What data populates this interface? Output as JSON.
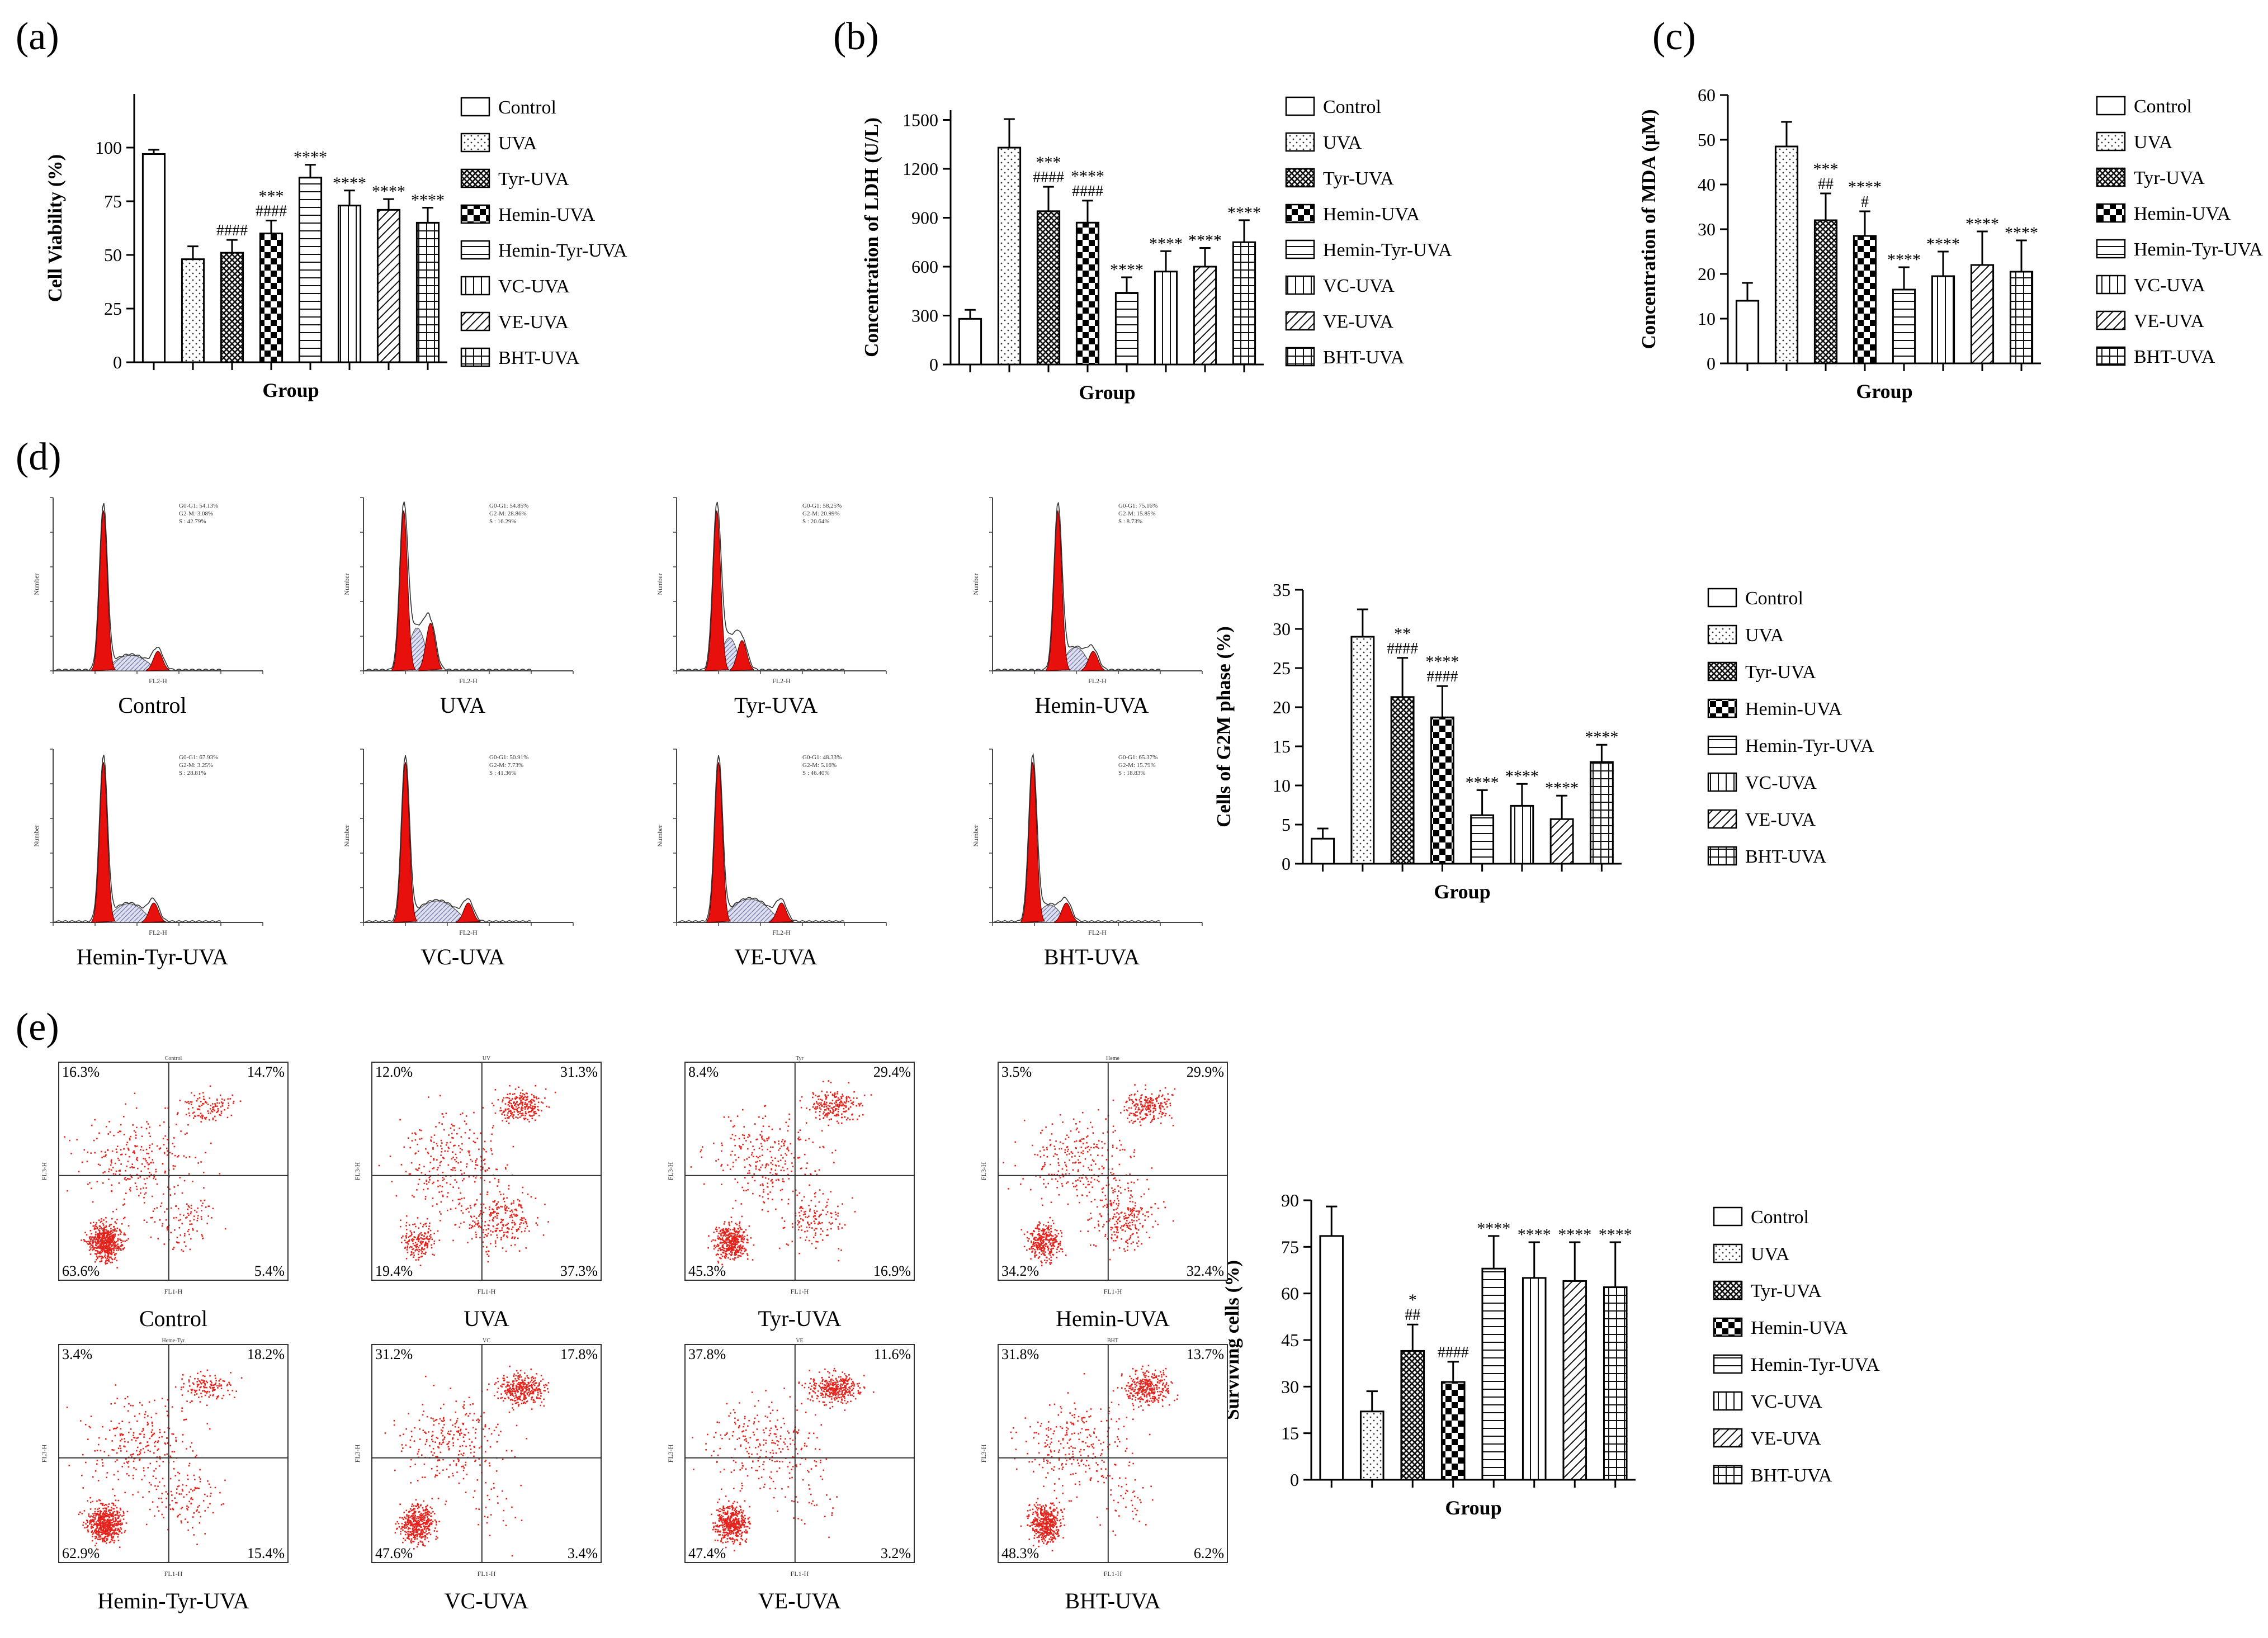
{
  "groups": [
    "Control",
    "UVA",
    "Tyr-UVA",
    "Hemin-UVA",
    "Hemin-Tyr-UVA",
    "VC-UVA",
    "VE-UVA",
    "BHT-UVA"
  ],
  "bar_charts": [
    {
      "id": "a",
      "panel_label": "(a)",
      "type": "bar",
      "ylabel": "Cell Viability (%)",
      "xlabel": "Group",
      "ylim": [
        0,
        125
      ],
      "yticks": [
        0,
        25,
        50,
        75,
        100
      ],
      "values": [
        97,
        48,
        51,
        60,
        86,
        73,
        71,
        65
      ],
      "errors": [
        2,
        6,
        6,
        6,
        6,
        7,
        5,
        7
      ],
      "sig_top": [
        "",
        "",
        "",
        "***",
        "****",
        "****",
        "****",
        "****"
      ],
      "sig_bottom": [
        "",
        "",
        "####",
        "####",
        "",
        "",
        "",
        ""
      ],
      "legend": [
        "Control",
        "UVA",
        "Tyr-UVA",
        "Hemin-UVA",
        "Hemin-Tyr-UVA",
        "VC-UVA",
        "VE-UVA",
        "BHT-UVA"
      ]
    },
    {
      "id": "b",
      "panel_label": "(b)",
      "type": "bar",
      "ylabel": "Concentration of LDH (U/L)",
      "xlabel": "Group",
      "ylim": [
        0,
        1560
      ],
      "yticks": [
        0,
        300,
        600,
        900,
        1200,
        1500
      ],
      "values": [
        280,
        1330,
        940,
        870,
        440,
        570,
        600,
        750
      ],
      "errors": [
        55,
        175,
        150,
        135,
        95,
        125,
        115,
        135
      ],
      "sig_top": [
        "",
        "",
        "***",
        "****",
        "****",
        "****",
        "****",
        "****"
      ],
      "sig_bottom": [
        "",
        "",
        "####",
        "####",
        "",
        "",
        "",
        ""
      ],
      "legend": [
        "Control",
        "UVA",
        "Tyr-UVA",
        "Hemin-UVA",
        "Hemin-Tyr-UVA",
        "VC-UVA",
        "VE-UVA",
        "BHT-UVA"
      ]
    },
    {
      "id": "c",
      "panel_label": "(c)",
      "type": "bar",
      "ylabel": "Concentration of MDA (μM)",
      "xlabel": "Group",
      "ylim": [
        0,
        60
      ],
      "yticks": [
        0,
        10,
        20,
        30,
        40,
        50,
        60
      ],
      "values": [
        14,
        48.5,
        32,
        28.5,
        16.5,
        19.5,
        22,
        20.5
      ],
      "errors": [
        4,
        5.5,
        6,
        5.5,
        5,
        5.5,
        7.5,
        7
      ],
      "sig_top": [
        "",
        "",
        "***",
        "****",
        "****",
        "****",
        "****",
        "****"
      ],
      "sig_bottom": [
        "",
        "",
        "##",
        "#",
        "",
        "",
        "",
        ""
      ],
      "legend": [
        "Control",
        "UVA",
        "Tyr-UVA",
        "Hemin-UVA",
        "Hemin-Tyr-UVA",
        "VC-UVA",
        "VE-UVA",
        "BHT-UVA"
      ]
    },
    {
      "id": "d",
      "panel_label": "",
      "type": "bar",
      "ylabel": "Cells of G2M phase (%)",
      "xlabel": "Group",
      "ylim": [
        0,
        35
      ],
      "yticks": [
        0,
        5,
        10,
        15,
        20,
        25,
        30,
        35
      ],
      "values": [
        3.2,
        29,
        21.3,
        18.7,
        6.2,
        7.4,
        5.7,
        13
      ],
      "errors": [
        1.3,
        3.5,
        5,
        4,
        3.2,
        2.8,
        3,
        2.2
      ],
      "sig_top": [
        "",
        "",
        "**",
        "****",
        "****",
        "****",
        "****",
        "****"
      ],
      "sig_bottom": [
        "",
        "",
        "####",
        "####",
        "",
        "",
        "",
        ""
      ],
      "legend": [
        "Control",
        "UVA",
        "Tyr-UVA",
        "Hemin-UVA",
        "Hemin-Tyr-UVA",
        "VC-UVA",
        "VE-UVA",
        "BHT-UVA"
      ]
    },
    {
      "id": "e",
      "panel_label": "",
      "type": "bar",
      "ylabel": "Surviving cells (%)",
      "xlabel": "Group",
      "ylim": [
        0,
        90
      ],
      "yticks": [
        0,
        15,
        30,
        45,
        60,
        75,
        90
      ],
      "values": [
        78.5,
        22,
        41.5,
        31.5,
        68,
        65,
        64,
        62
      ],
      "errors": [
        9.5,
        6.5,
        8.5,
        6.5,
        10.5,
        11.5,
        12.5,
        14.5
      ],
      "sig_top": [
        "",
        "",
        "*",
        "",
        "****",
        "****",
        "****",
        "****"
      ],
      "sig_bottom": [
        "",
        "",
        "##",
        "####",
        "",
        "",
        "",
        ""
      ],
      "legend": [
        "Control",
        "UVA",
        "Tyr-UVA",
        "Hemin-UVA",
        "Hemin-Tyr-UVA",
        "VC-UVA",
        "VE-UVA",
        "BHT-UVA"
      ]
    }
  ],
  "panel_d": {
    "label": "(d)",
    "plots": [
      {
        "caption": "Control",
        "xlabel": "FL2-H",
        "ylabel": "Number",
        "stats": [
          "G0-G1: 54.13%",
          "G2-M: 3.08%",
          "S : 42.79%"
        ],
        "g1": 60,
        "g2": 125,
        "s_peak": 40
      },
      {
        "caption": "UVA",
        "xlabel": "FL2-H",
        "ylabel": "Number",
        "stats": [
          "G0-G1: 54.85%",
          "G2-M: 28.86%",
          "S : 16.29%"
        ],
        "g1": 48,
        "g2": 80,
        "s_peak": 110
      },
      {
        "caption": "Tyr-UVA",
        "xlabel": "FL2-H",
        "ylabel": "Number",
        "stats": [
          "G0-G1: 58.25%",
          "G2-M: 20.99%",
          "S : 20.64%"
        ],
        "g1": 48,
        "g2": 78,
        "s_peak": 85
      },
      {
        "caption": "Hemin-UVA",
        "xlabel": "FL2-H",
        "ylabel": "Number",
        "stats": [
          "G0-G1: 75.16%",
          "G2-M: 15.85%",
          "S : 8.73%"
        ],
        "g1": 78,
        "g2": 120,
        "s_peak": 60
      },
      {
        "caption": "Hemin-Tyr-UVA",
        "xlabel": "FL2-H",
        "ylabel": "Number",
        "stats": [
          "G0-G1: 67.93%",
          "G2-M: 3.25%",
          "S : 28.81%"
        ],
        "g1": 60,
        "g2": 120,
        "s_peak": 48
      },
      {
        "caption": "VC-UVA",
        "xlabel": "FL2-H",
        "ylabel": "Number",
        "stats": [
          "G0-G1: 50.91%",
          "G2-M: 7.73%",
          "S : 41.36%"
        ],
        "g1": 50,
        "g2": 125,
        "s_peak": 55
      },
      {
        "caption": "VE-UVA",
        "xlabel": "FL2-H",
        "ylabel": "Number",
        "stats": [
          "G0-G1: 48.33%",
          "G2-M: 5.16%",
          "S : 46.40%"
        ],
        "g1": 50,
        "g2": 125,
        "s_peak": 60
      },
      {
        "caption": "BHT-UVA",
        "xlabel": "FL2-H",
        "ylabel": "Number",
        "stats": [
          "G0-G1: 65.37%",
          "G2-M: 15.79%",
          "S : 18.83%"
        ],
        "g1": 48,
        "g2": 88,
        "s_peak": 45
      }
    ]
  },
  "panel_e": {
    "label": "(e)",
    "plots": [
      {
        "caption": "Control",
        "title": "Control",
        "xlabel": "FL1-H",
        "ylabel": "FL3-H",
        "q": [
          "16.3%",
          "14.7%",
          "63.6%",
          "5.4%"
        ],
        "live": 0.66,
        "apo": 0.15,
        "necro": 0.16
      },
      {
        "caption": "UVA",
        "title": "UV",
        "xlabel": "FL1-H",
        "ylabel": "FL3-H",
        "q": [
          "12.0%",
          "31.3%",
          "19.4%",
          "37.3%"
        ],
        "live": 0.2,
        "apo": 0.4,
        "necro": 0.34
      },
      {
        "caption": "Tyr-UVA",
        "title": "Tyr",
        "xlabel": "FL1-H",
        "ylabel": "FL3-H",
        "q": [
          "8.4%",
          "29.4%",
          "45.3%",
          "16.9%"
        ],
        "live": 0.45,
        "apo": 0.2,
        "necro": 0.3
      },
      {
        "caption": "Hemin-UVA",
        "title": "Heme",
        "xlabel": "FL1-H",
        "ylabel": "FL3-H",
        "q": [
          "3.5%",
          "29.9%",
          "34.2%",
          "32.4%"
        ],
        "live": 0.35,
        "apo": 0.34,
        "necro": 0.3
      },
      {
        "caption": "Hemin-Tyr-UVA",
        "title": "Heme-Tyr",
        "xlabel": "FL1-H",
        "ylabel": "FL3-H",
        "q": [
          "3.4%",
          "18.2%",
          "62.9%",
          "15.4%"
        ],
        "live": 0.64,
        "apo": 0.16,
        "necro": 0.19
      },
      {
        "caption": "VC-UVA",
        "title": "VC",
        "xlabel": "FL1-H",
        "ylabel": "FL3-H",
        "q": [
          "31.2%",
          "17.8%",
          "47.6%",
          "3.4%"
        ],
        "live": 0.48,
        "apo": 0.04,
        "necro": 0.48
      },
      {
        "caption": "VE-UVA",
        "title": "VE",
        "xlabel": "FL1-H",
        "ylabel": "FL3-H",
        "q": [
          "37.8%",
          "11.6%",
          "47.4%",
          "3.2%"
        ],
        "live": 0.48,
        "apo": 0.04,
        "necro": 0.48
      },
      {
        "caption": "BHT-UVA",
        "title": "BHT",
        "xlabel": "FL1-H",
        "ylabel": "FL3-H",
        "q": [
          "31.8%",
          "13.7%",
          "48.3%",
          "6.2%"
        ],
        "live": 0.49,
        "apo": 0.06,
        "necro": 0.45
      }
    ]
  },
  "chart_data": [
    {
      "type": "bar",
      "title": "(a)",
      "categories": [
        "Control",
        "UVA",
        "Tyr-UVA",
        "Hemin-UVA",
        "Hemin-Tyr-UVA",
        "VC-UVA",
        "VE-UVA",
        "BHT-UVA"
      ],
      "values": [
        97,
        48,
        51,
        60,
        86,
        73,
        71,
        65
      ],
      "xlabel": "Group",
      "ylabel": "Cell Viability (%)",
      "ylim": [
        0,
        125
      ]
    },
    {
      "type": "bar",
      "title": "(b)",
      "categories": [
        "Control",
        "UVA",
        "Tyr-UVA",
        "Hemin-UVA",
        "Hemin-Tyr-UVA",
        "VC-UVA",
        "VE-UVA",
        "BHT-UVA"
      ],
      "values": [
        280,
        1330,
        940,
        870,
        440,
        570,
        600,
        750
      ],
      "xlabel": "Group",
      "ylabel": "Concentration of LDH (U/L)",
      "ylim": [
        0,
        1560
      ]
    },
    {
      "type": "bar",
      "title": "(c)",
      "categories": [
        "Control",
        "UVA",
        "Tyr-UVA",
        "Hemin-UVA",
        "Hemin-Tyr-UVA",
        "VC-UVA",
        "VE-UVA",
        "BHT-UVA"
      ],
      "values": [
        14,
        48.5,
        32,
        28.5,
        16.5,
        19.5,
        22,
        20.5
      ],
      "xlabel": "Group",
      "ylabel": "Concentration of MDA (μM)",
      "ylim": [
        0,
        60
      ]
    },
    {
      "type": "bar",
      "title": "(d)",
      "categories": [
        "Control",
        "UVA",
        "Tyr-UVA",
        "Hemin-UVA",
        "Hemin-Tyr-UVA",
        "VC-UVA",
        "VE-UVA",
        "BHT-UVA"
      ],
      "values": [
        3.2,
        29,
        21.3,
        18.7,
        6.2,
        7.4,
        5.7,
        13
      ],
      "xlabel": "Group",
      "ylabel": "Cells of G2M phase (%)",
      "ylim": [
        0,
        35
      ]
    },
    {
      "type": "bar",
      "title": "(e)",
      "categories": [
        "Control",
        "UVA",
        "Tyr-UVA",
        "Hemin-UVA",
        "Hemin-Tyr-UVA",
        "VC-UVA",
        "VE-UVA",
        "BHT-UVA"
      ],
      "values": [
        78.5,
        22,
        41.5,
        31.5,
        68,
        65,
        64,
        62
      ],
      "xlabel": "Group",
      "ylabel": "Surviving cells (%)",
      "ylim": [
        0,
        90
      ]
    }
  ]
}
